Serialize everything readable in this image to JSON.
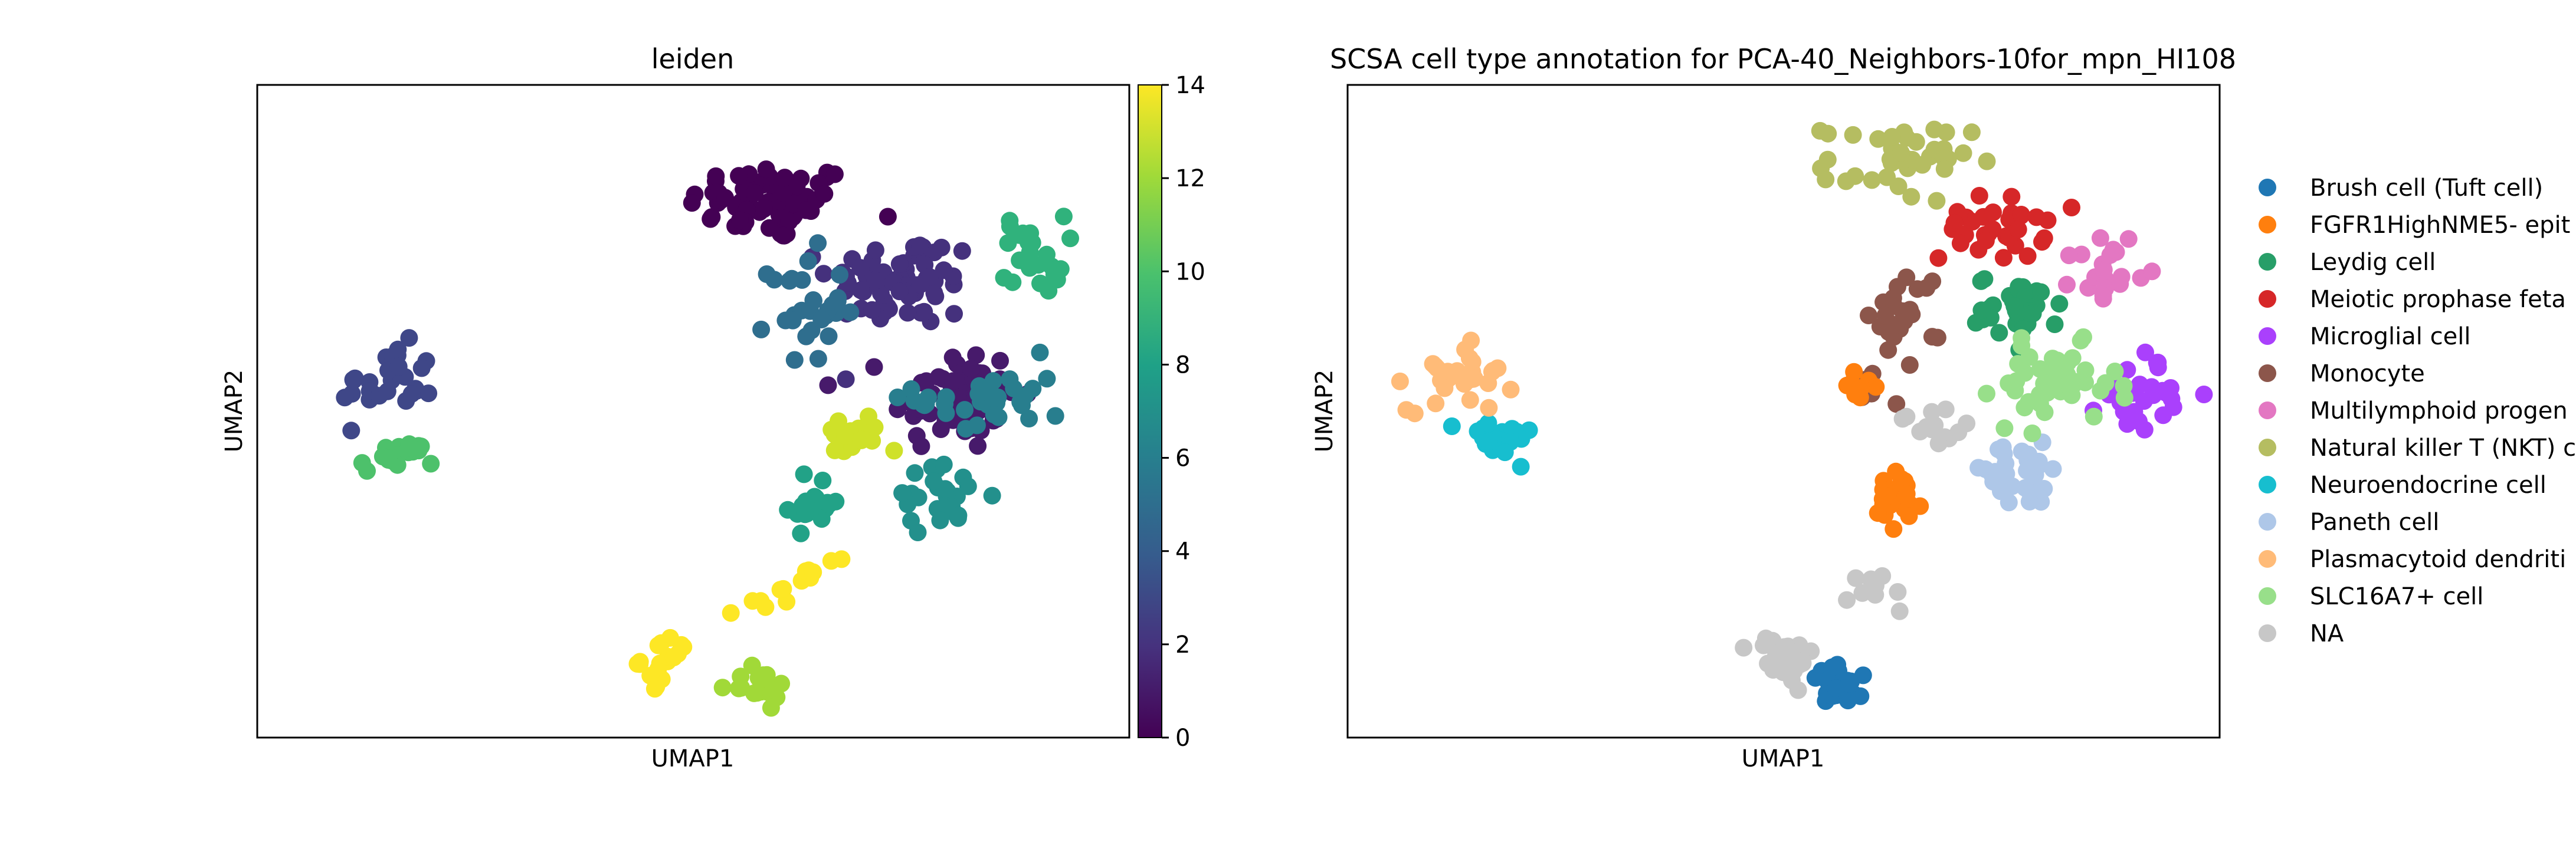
{
  "chart_data": [
    {
      "type": "scatter",
      "title": "leiden",
      "xlabel": "UMAP1",
      "ylabel": "UMAP2",
      "colorbar": {
        "colormap": "viridis",
        "range": [
          0,
          14
        ],
        "ticks": [
          "0",
          "2",
          "4",
          "6",
          "8",
          "10",
          "12",
          "14"
        ]
      },
      "xlim": [
        0,
        100
      ],
      "ylim": [
        0,
        100
      ],
      "clusters": [
        {
          "value": 0,
          "center": [
            59,
            82
          ],
          "spread": [
            8,
            5
          ],
          "n": 70
        },
        {
          "value": 1,
          "center": [
            80,
            52
          ],
          "spread": [
            6,
            7
          ],
          "n": 60
        },
        {
          "value": 2,
          "center": [
            74,
            70
          ],
          "spread": [
            7,
            6
          ],
          "n": 65
        },
        {
          "value": 3,
          "center": [
            15,
            54
          ],
          "spread": [
            4.5,
            5
          ],
          "n": 30
        },
        {
          "value": 5,
          "center": [
            63,
            66
          ],
          "spread": [
            3.5,
            7
          ],
          "n": 30
        },
        {
          "value": 6,
          "center": [
            84,
            52
          ],
          "spread": [
            7,
            5
          ],
          "n": 35
        },
        {
          "value": 7,
          "center": [
            78,
            37
          ],
          "spread": [
            5,
            4
          ],
          "n": 25
        },
        {
          "value": 8,
          "center": [
            64,
            36
          ],
          "spread": [
            2.5,
            4
          ],
          "n": 20
        },
        {
          "value": 9,
          "center": [
            89,
            74
          ],
          "spread": [
            3,
            5
          ],
          "n": 25
        },
        {
          "value": 10,
          "center": [
            16,
            43
          ],
          "spread": [
            3.5,
            2
          ],
          "n": 20
        },
        {
          "value": 12,
          "center": [
            57,
            8
          ],
          "spread": [
            3.5,
            2
          ],
          "n": 20
        },
        {
          "value": 13,
          "center": [
            68,
            46
          ],
          "spread": [
            3,
            3
          ],
          "n": 20
        },
        {
          "value": 14,
          "center": [
            47,
            12
          ],
          "spread": [
            2.5,
            3
          ],
          "n": 18
        }
      ],
      "trail": {
        "value": 14,
        "from": [
          55,
          19
        ],
        "to": [
          67,
          27
        ],
        "n": 14
      }
    },
    {
      "type": "scatter",
      "title": "SCSA cell type annotation for PCA-40_Neighbors-10for_mpn_HI108",
      "xlabel": "UMAP1",
      "ylabel": "UMAP2",
      "legend_position": "right (outside plot)",
      "xlim": [
        0,
        100
      ],
      "ylim": [
        0,
        100
      ],
      "series": [
        {
          "name": "Brush cell (Tuft cell)",
          "color": "#1f77b4",
          "center": [
            57,
            8
          ],
          "spread": [
            3.5,
            2.5
          ],
          "n": 25
        },
        {
          "name": "FGFR1HighNME5- epit",
          "color": "#ff7f0e",
          "center": [
            63,
            36
          ],
          "spread": [
            2.5,
            4
          ],
          "n": 25
        },
        {
          "name": "Leydig cell",
          "color": "#279e68",
          "center": [
            77,
            66
          ],
          "spread": [
            4,
            4
          ],
          "n": 35
        },
        {
          "name": "Meiotic prophase feta",
          "color": "#d62728",
          "center": [
            74,
            78
          ],
          "spread": [
            5,
            4
          ],
          "n": 35
        },
        {
          "name": "Microglial cell",
          "color": "#aa40fc",
          "center": [
            91,
            53
          ],
          "spread": [
            4,
            5
          ],
          "n": 30
        },
        {
          "name": "Monocyte",
          "color": "#8c564b",
          "center": [
            64,
            65
          ],
          "spread": [
            3.5,
            6
          ],
          "n": 25
        },
        {
          "name": "Multilymphoid progen",
          "color": "#e377c2",
          "center": [
            87,
            72
          ],
          "spread": [
            3,
            5
          ],
          "n": 20
        },
        {
          "name": "Natural killer T (NKT) c",
          "color": "#b5bd61",
          "center": [
            63,
            88
          ],
          "spread": [
            7,
            5
          ],
          "n": 40
        },
        {
          "name": "Neuroendocrine cell",
          "color": "#17becf",
          "center": [
            17,
            46
          ],
          "spread": [
            3.5,
            2.5
          ],
          "n": 20
        },
        {
          "name": "Paneth cell",
          "color": "#aec7e8",
          "center": [
            77,
            40
          ],
          "spread": [
            6,
            4
          ],
          "n": 30
        },
        {
          "name": "Plasmacytoid dendriti",
          "color": "#ffbb78",
          "center": [
            13,
            56
          ],
          "spread": [
            5,
            5
          ],
          "n": 30
        },
        {
          "name": "SLC16A7+ cell",
          "color": "#98df8a",
          "center": [
            81,
            54
          ],
          "spread": [
            6,
            5
          ],
          "n": 45
        },
        {
          "name": "NA",
          "color": "#c7c7c7",
          "center": [
            50,
            12
          ],
          "spread": [
            3,
            3
          ],
          "n": 35
        }
      ],
      "extra_points": [
        {
          "series": "Monocyte",
          "center": [
            59,
            55
          ],
          "spread": [
            2,
            3
          ],
          "n": 8
        },
        {
          "series": "NA",
          "center": [
            67,
            47
          ],
          "spread": [
            3,
            3
          ],
          "n": 15
        },
        {
          "series": "NA",
          "center": [
            61,
            23
          ],
          "spread": [
            3,
            3
          ],
          "n": 10
        },
        {
          "series": "FGFR1HighNME5- epit",
          "center": [
            59,
            54
          ],
          "spread": [
            1.5,
            3
          ],
          "n": 8
        }
      ]
    }
  ]
}
